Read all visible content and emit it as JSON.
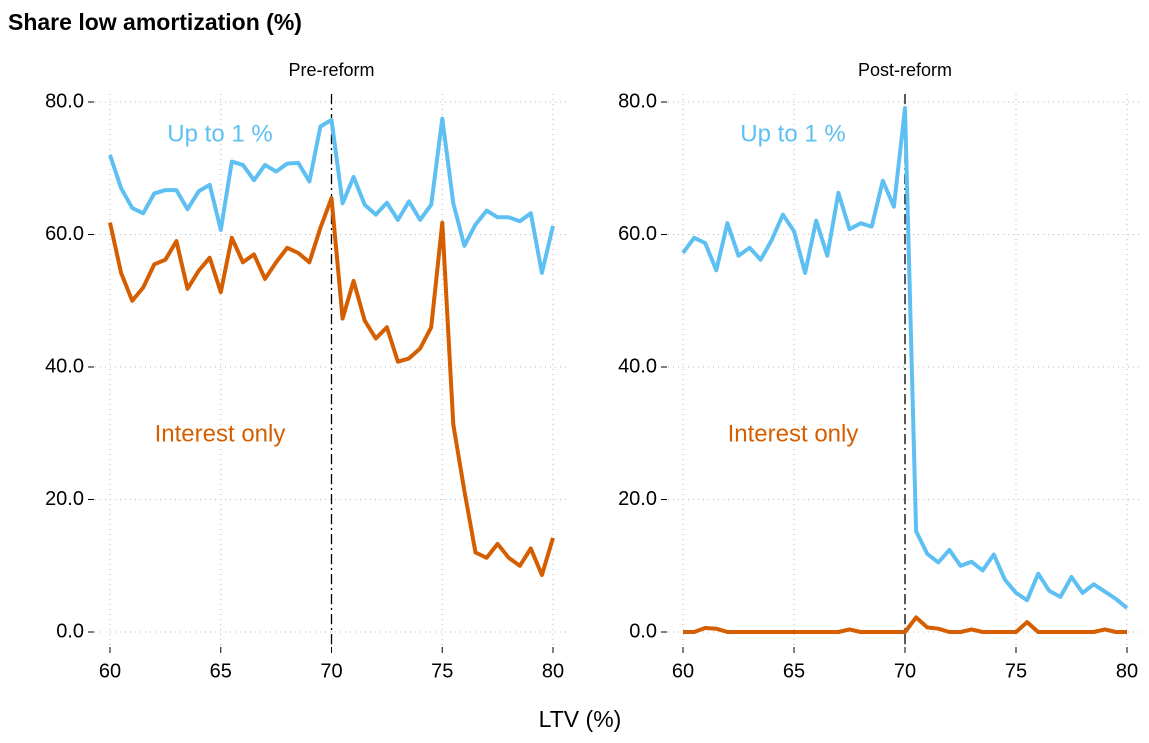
{
  "title": "Share low amortization (%)",
  "xlabel": "LTV (%)",
  "chart_data": [
    {
      "type": "line",
      "title": "Pre-reform",
      "x": [
        60,
        60.5,
        61,
        61.5,
        62,
        62.5,
        63,
        63.5,
        64,
        64.5,
        65,
        65.5,
        66,
        66.5,
        67,
        67.5,
        68,
        68.5,
        69,
        69.5,
        70,
        70.5,
        71,
        71.5,
        72,
        72.5,
        73,
        73.5,
        74,
        74.5,
        75,
        75.5,
        76,
        76.5,
        77,
        77.5,
        78,
        78.5,
        79,
        79.5,
        80
      ],
      "series": [
        {
          "name": "Up to 1 %",
          "color": "#5ec0f2",
          "values": [
            72,
            67,
            64,
            63.2,
            66.2,
            66.7,
            66.7,
            63.8,
            66.5,
            67.5,
            60.7,
            71,
            70.5,
            68.2,
            70.5,
            69.5,
            70.7,
            70.8,
            68,
            76.3,
            77.3,
            64.7,
            68.7,
            64.5,
            63,
            64.8,
            62.2,
            65,
            62.2,
            64.5,
            77.5,
            64.7,
            58.3,
            61.5,
            63.6,
            62.6,
            62.6,
            62,
            63.2,
            54.2,
            61.3
          ]
        },
        {
          "name": "Interest only",
          "color": "#d55e00",
          "values": [
            61.8,
            54.2,
            50,
            52,
            55.5,
            56.2,
            59,
            51.8,
            54.5,
            56.5,
            51.3,
            59.5,
            55.8,
            57,
            53.3,
            55.8,
            58,
            57.2,
            55.8,
            61,
            65.5,
            47.3,
            53,
            47,
            44.3,
            46,
            40.8,
            41.3,
            42.8,
            46,
            61.8,
            31.3,
            21.3,
            12,
            11.2,
            13.3,
            11.2,
            10,
            12.6,
            8.6,
            14.2
          ]
        }
      ],
      "xlim": [
        60,
        80
      ],
      "ylim": [
        0,
        80
      ],
      "xticks": [
        60,
        65,
        70,
        75,
        80
      ],
      "yticks": [
        {
          "value": 0,
          "label": "0.0"
        },
        {
          "value": 20,
          "label": "20.0"
        },
        {
          "value": 40,
          "label": "40.0"
        },
        {
          "value": 60,
          "label": "60.0"
        },
        {
          "value": 80,
          "label": "80.0"
        }
      ],
      "vline": 70,
      "grid": true
    },
    {
      "type": "line",
      "title": "Post-reform",
      "x": [
        60,
        60.5,
        61,
        61.5,
        62,
        62.5,
        63,
        63.5,
        64,
        64.5,
        65,
        65.5,
        66,
        66.5,
        67,
        67.5,
        68,
        68.5,
        69,
        69.5,
        70,
        70.5,
        71,
        71.5,
        72,
        72.5,
        73,
        73.5,
        74,
        74.5,
        75,
        75.5,
        76,
        76.5,
        77,
        77.5,
        78,
        78.5,
        79,
        79.5,
        80
      ],
      "series": [
        {
          "name": "Up to 1 %",
          "color": "#5ec0f2",
          "values": [
            57.2,
            59.5,
            58.7,
            54.6,
            61.7,
            56.8,
            58,
            56.2,
            59.2,
            63,
            60.5,
            54.2,
            62.1,
            56.8,
            66.3,
            60.8,
            61.7,
            61.2,
            68.1,
            64.2,
            79.1,
            15.2,
            11.8,
            10.5,
            12.4,
            10,
            10.6,
            9.3,
            11.7,
            7.9,
            5.9,
            4.8,
            8.8,
            6.2,
            5.3,
            8.3,
            5.9,
            7.2,
            6.1,
            5,
            3.6
          ]
        },
        {
          "name": "Interest only",
          "color": "#d55e00",
          "values": [
            0,
            0,
            0.6,
            0.5,
            0,
            0,
            0,
            0,
            0,
            0,
            0,
            0,
            0,
            0,
            0,
            0.4,
            0,
            0,
            0,
            0,
            0,
            2.2,
            0.7,
            0.5,
            0,
            0,
            0.4,
            0,
            0,
            0,
            0,
            1.5,
            0,
            0,
            0,
            0,
            0,
            0,
            0.4,
            0,
            0
          ]
        }
      ],
      "xlim": [
        60,
        80
      ],
      "ylim": [
        0,
        80
      ],
      "xticks": [
        60,
        65,
        70,
        75,
        80
      ],
      "yticks": [
        {
          "value": 0,
          "label": "0.0"
        },
        {
          "value": 20,
          "label": "20.0"
        },
        {
          "value": 40,
          "label": "40.0"
        },
        {
          "value": 60,
          "label": "60.0"
        },
        {
          "value": 80,
          "label": "80.0"
        }
      ],
      "vline": 70,
      "grid": true
    }
  ]
}
